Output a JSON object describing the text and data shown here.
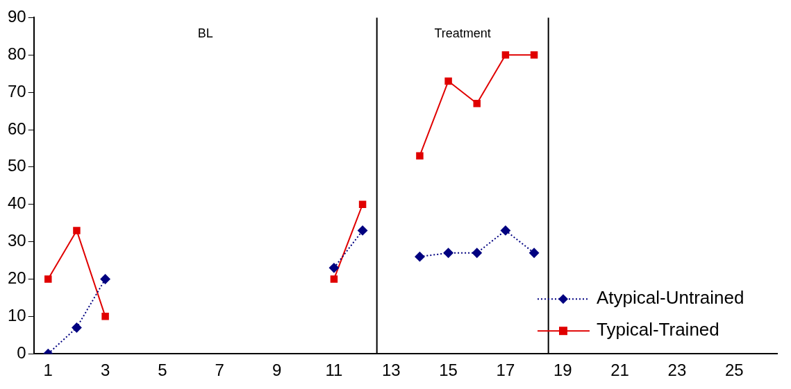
{
  "chart_data": {
    "type": "line",
    "x": [
      1,
      2,
      3,
      4,
      5,
      6,
      7,
      8,
      9,
      10,
      11,
      12,
      13,
      14,
      15,
      16,
      17,
      18
    ],
    "series": [
      {
        "name": "Atypical-Untrained",
        "color": "#000080",
        "marker": "diamond",
        "line_style": "dotted",
        "values": [
          0,
          7,
          20,
          null,
          null,
          null,
          null,
          null,
          null,
          null,
          23,
          33,
          null,
          26,
          27,
          27,
          33,
          27
        ]
      },
      {
        "name": "Typical-Trained",
        "color": "#e00000",
        "marker": "square",
        "line_style": "solid",
        "values": [
          20,
          33,
          10,
          null,
          null,
          null,
          null,
          null,
          null,
          null,
          20,
          40,
          null,
          53,
          73,
          67,
          80,
          80
        ]
      }
    ],
    "xlim": [
      0.5,
      26.5
    ],
    "xticks": [
      1,
      3,
      5,
      7,
      9,
      11,
      13,
      15,
      17,
      19,
      21,
      23,
      25
    ],
    "ylim": [
      0,
      90
    ],
    "yticks": [
      0,
      10,
      20,
      30,
      40,
      50,
      60,
      70,
      80,
      90
    ],
    "grid": false,
    "legend": "bottom right",
    "ref_lines": [
      {
        "axis": "x",
        "value": 12.5,
        "color": "#000000"
      },
      {
        "axis": "x",
        "value": 18.5,
        "color": "#000000"
      }
    ],
    "annotations": [
      "BL",
      "Treatment"
    ]
  }
}
